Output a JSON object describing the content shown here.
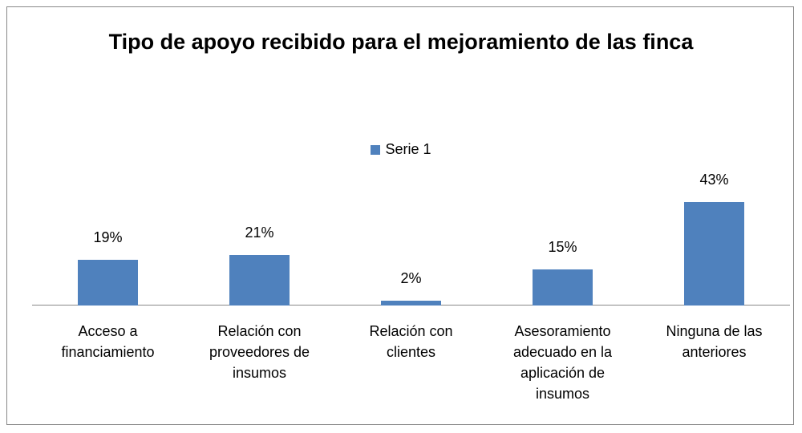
{
  "chart_data": {
    "type": "bar",
    "title": "Tipo de apoyo recibido para el mejoramiento de las finca",
    "categories": [
      "Acceso a financiamiento",
      "Relación con proveedores de insumos",
      "Relación con clientes",
      "Asesoramiento adecuado en la aplicación de insumos",
      "Ninguna de las anteriores"
    ],
    "series": [
      {
        "name": "Serie 1",
        "color": "#4f81bd",
        "values": [
          19,
          21,
          2,
          15,
          43
        ],
        "value_labels": [
          "19%",
          "21%",
          "2%",
          "15%",
          "43%"
        ]
      }
    ],
    "legend": "top"
  }
}
